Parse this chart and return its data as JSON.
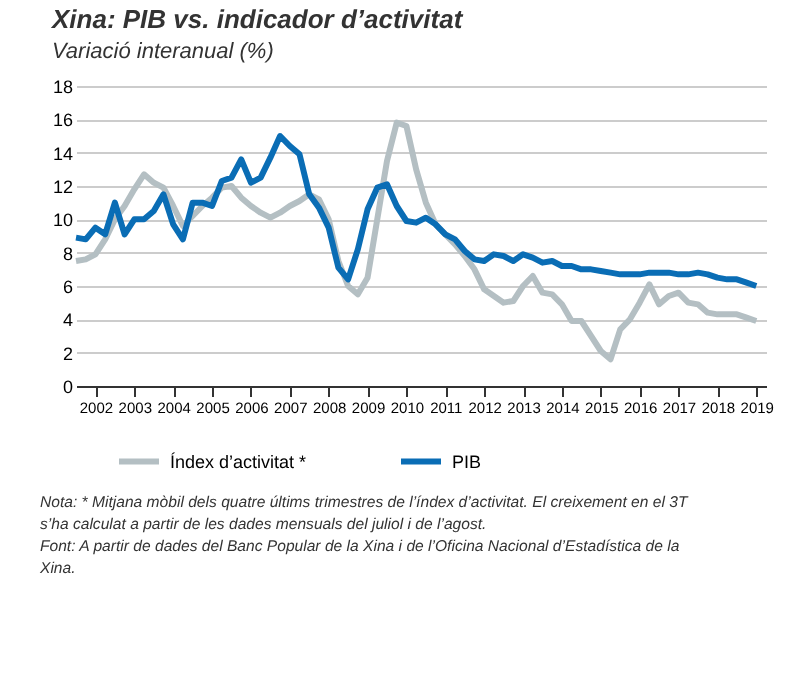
{
  "chart_data": {
    "type": "line",
    "title": "Xina: PIB vs. indicador d’activitat",
    "subtitle": "Variació interanual (%)",
    "x": [
      2002.0,
      2002.25,
      2002.5,
      2002.75,
      2003.0,
      2003.25,
      2003.5,
      2003.75,
      2004.0,
      2004.25,
      2004.5,
      2004.75,
      2005.0,
      2005.25,
      2005.5,
      2005.75,
      2006.0,
      2006.25,
      2006.5,
      2006.75,
      2007.0,
      2007.25,
      2007.5,
      2007.75,
      2008.0,
      2008.25,
      2008.5,
      2008.75,
      2009.0,
      2009.25,
      2009.5,
      2009.75,
      2010.0,
      2010.25,
      2010.5,
      2010.75,
      2011.0,
      2011.25,
      2011.5,
      2011.75,
      2012.0,
      2012.25,
      2012.5,
      2012.75,
      2013.0,
      2013.25,
      2013.5,
      2013.75,
      2014.0,
      2014.25,
      2014.5,
      2014.75,
      2015.0,
      2015.25,
      2015.5,
      2015.75,
      2016.0,
      2016.25,
      2016.5,
      2016.75,
      2017.0,
      2017.25,
      2017.5,
      2017.75,
      2018.0,
      2018.25,
      2018.5,
      2018.75,
      2019.0,
      2019.25,
      2019.5
    ],
    "series": [
      {
        "name": "Índex d’activitat *",
        "color": "#b4bfc3",
        "values": [
          7.5,
          7.6,
          7.9,
          8.8,
          10.0,
          10.8,
          11.8,
          12.7,
          12.2,
          11.9,
          10.8,
          9.6,
          10.2,
          10.8,
          11.3,
          11.9,
          12.0,
          11.3,
          10.8,
          10.4,
          10.1,
          10.4,
          10.8,
          11.1,
          11.5,
          11.2,
          10.0,
          7.5,
          6.0,
          5.5,
          6.5,
          10.0,
          13.5,
          15.8,
          15.6,
          13.0,
          11.0,
          9.7,
          9.1,
          8.5,
          7.8,
          7.0,
          5.8,
          5.4,
          5.0,
          5.1,
          6.0,
          6.6,
          5.6,
          5.5,
          4.9,
          3.9,
          3.9,
          3.0,
          2.1,
          1.6,
          3.4,
          4.0,
          5.0,
          6.1,
          4.9,
          5.4,
          5.6,
          5.0,
          4.9,
          4.4,
          4.3,
          4.3,
          4.3,
          4.1,
          3.9
        ]
      },
      {
        "name": "PIB",
        "color": "#0a6db5",
        "values": [
          8.9,
          8.8,
          9.5,
          9.1,
          11.0,
          9.1,
          10.0,
          10.0,
          10.5,
          11.5,
          9.7,
          8.8,
          11.0,
          11.0,
          10.8,
          12.3,
          12.5,
          13.6,
          12.2,
          12.5,
          13.7,
          15.0,
          14.4,
          13.9,
          11.5,
          10.7,
          9.5,
          7.1,
          6.4,
          8.2,
          10.6,
          11.9,
          12.1,
          10.8,
          9.9,
          9.8,
          10.1,
          9.7,
          9.1,
          8.8,
          8.1,
          7.6,
          7.5,
          7.9,
          7.8,
          7.5,
          7.9,
          7.7,
          7.4,
          7.5,
          7.2,
          7.2,
          7.0,
          7.0,
          6.9,
          6.8,
          6.7,
          6.7,
          6.7,
          6.8,
          6.8,
          6.8,
          6.7,
          6.7,
          6.8,
          6.7,
          6.5,
          6.4,
          6.4,
          6.2,
          6.0
        ]
      }
    ],
    "xlim": [
      2002,
      2019.75
    ],
    "xticks": [
      {
        "value": 2002.5,
        "label": "2002"
      },
      {
        "value": 2003.5,
        "label": "2003"
      },
      {
        "value": 2004.5,
        "label": "2004"
      },
      {
        "value": 2005.5,
        "label": "2005"
      },
      {
        "value": 2006.5,
        "label": "2006"
      },
      {
        "value": 2007.5,
        "label": "2007"
      },
      {
        "value": 2008.5,
        "label": "2008"
      },
      {
        "value": 2009.5,
        "label": "2009"
      },
      {
        "value": 2010.5,
        "label": "2010"
      },
      {
        "value": 2011.5,
        "label": "2011"
      },
      {
        "value": 2012.5,
        "label": "2012"
      },
      {
        "value": 2013.5,
        "label": "2013"
      },
      {
        "value": 2014.5,
        "label": "2014"
      },
      {
        "value": 2015.5,
        "label": "2015"
      },
      {
        "value": 2016.5,
        "label": "2016"
      },
      {
        "value": 2017.5,
        "label": "2017"
      },
      {
        "value": 2018.5,
        "label": "2018"
      },
      {
        "value": 2019.5,
        "label": "2019"
      }
    ],
    "ylim": [
      0,
      18
    ],
    "yticks": [
      0,
      2,
      4,
      6,
      8,
      10,
      12,
      14,
      16,
      18
    ],
    "grid": "y",
    "legend": "bottom",
    "marker": "none",
    "line_style": "solid",
    "annotations": [
      "Nota: * Mitjana mòbil dels quatre últims trimestres de l’índex d’activitat. El creixement en el 3T s’ha calculat a partir de les dades mensuals del juliol i de l’agost.",
      "Font: A partir de dades del Banc Popular de la Xina i de l’Oficina Nacional d’Estadística de la Xina."
    ]
  }
}
